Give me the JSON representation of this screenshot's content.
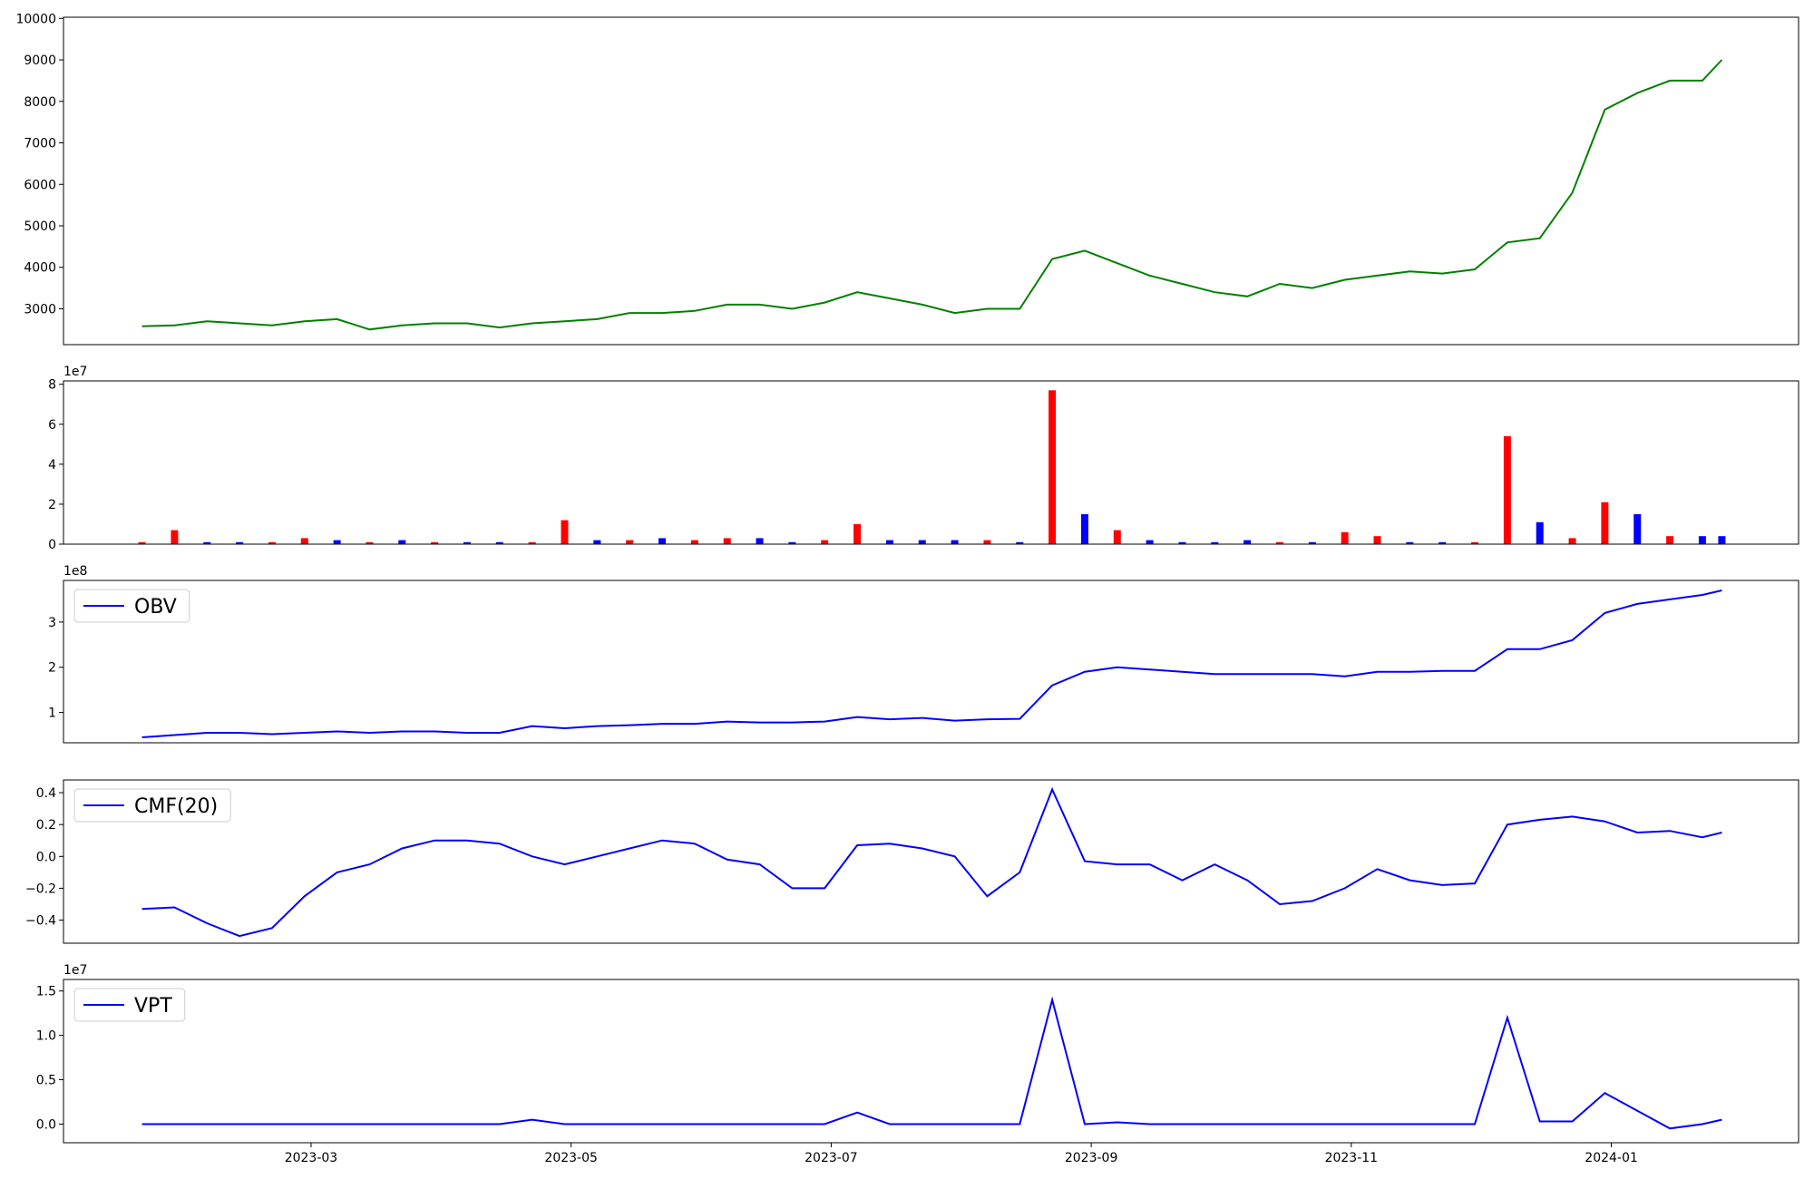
{
  "chart_data": [
    {
      "type": "line",
      "color": "#008000",
      "x": [
        0.7,
        0.95,
        1.2,
        1.45,
        1.7,
        1.95,
        2.2,
        2.45,
        2.7,
        2.95,
        3.2,
        3.45,
        3.7,
        3.95,
        4.2,
        4.45,
        4.7,
        4.95,
        5.2,
        5.45,
        5.7,
        5.95,
        6.2,
        6.45,
        6.7,
        6.95,
        7.2,
        7.45,
        7.7,
        7.95,
        8.2,
        8.45,
        8.7,
        8.95,
        9.2,
        9.45,
        9.7,
        9.95,
        10.2,
        10.45,
        10.7,
        10.95,
        11.2,
        11.45,
        11.7,
        11.95,
        12.2,
        12.45,
        12.7,
        12.85
      ],
      "values": [
        2580,
        2600,
        2700,
        2650,
        2600,
        2700,
        2750,
        2500,
        2600,
        2650,
        2650,
        2550,
        2650,
        2700,
        2750,
        2900,
        2900,
        2950,
        3100,
        3100,
        3000,
        3150,
        3400,
        3250,
        3100,
        2900,
        3000,
        3000,
        4200,
        4400,
        4100,
        3800,
        3600,
        3400,
        3300,
        3600,
        3500,
        3700,
        3800,
        3900,
        3850,
        3950,
        4600,
        4700,
        5800,
        7800,
        8200,
        8500,
        8500,
        9000
      ],
      "xlim": [
        0.096,
        13.44
      ],
      "ylim": [
        2136,
        10028
      ],
      "yticks": [
        3000,
        4000,
        5000,
        6000,
        7000,
        8000,
        9000,
        10000
      ]
    },
    {
      "type": "bar",
      "offset_label": "1e7",
      "x": [
        0.7,
        0.95,
        1.2,
        1.45,
        1.7,
        1.95,
        2.2,
        2.45,
        2.7,
        2.95,
        3.2,
        3.45,
        3.7,
        3.95,
        4.2,
        4.45,
        4.7,
        4.95,
        5.2,
        5.45,
        5.7,
        5.95,
        6.2,
        6.45,
        6.7,
        6.95,
        7.2,
        7.45,
        7.7,
        7.95,
        8.2,
        8.45,
        8.7,
        8.95,
        9.2,
        9.45,
        9.7,
        9.95,
        10.2,
        10.45,
        10.7,
        10.95,
        11.2,
        11.45,
        11.7,
        11.95,
        12.2,
        12.45,
        12.7,
        12.85
      ],
      "values": [
        0.1,
        0.7,
        0.1,
        0.1,
        0.1,
        0.3,
        0.2,
        0.1,
        0.2,
        0.1,
        0.1,
        0.1,
        0.1,
        1.2,
        0.2,
        0.2,
        0.3,
        0.2,
        0.3,
        0.3,
        0.1,
        0.2,
        1.0,
        0.2,
        0.2,
        0.2,
        0.2,
        0.1,
        7.7,
        1.5,
        0.7,
        0.2,
        0.1,
        0.1,
        0.2,
        0.1,
        0.1,
        0.6,
        0.4,
        0.1,
        0.1,
        0.1,
        5.4,
        1.1,
        0.3,
        2.1,
        1.5,
        0.4,
        0.4,
        0.4
      ],
      "bar_colors": [
        "#ff0000",
        "#ff0000",
        "#0000ff",
        "#0000ff",
        "#ff0000",
        "#ff0000",
        "#0000ff",
        "#ff0000",
        "#0000ff",
        "#ff0000",
        "#0000ff",
        "#0000ff",
        "#ff0000",
        "#ff0000",
        "#0000ff",
        "#ff0000",
        "#0000ff",
        "#ff0000",
        "#ff0000",
        "#0000ff",
        "#0000ff",
        "#ff0000",
        "#ff0000",
        "#0000ff",
        "#0000ff",
        "#0000ff",
        "#ff0000",
        "#0000ff",
        "#ff0000",
        "#0000ff",
        "#ff0000",
        "#0000ff",
        "#0000ff",
        "#0000ff",
        "#0000ff",
        "#ff0000",
        "#0000ff",
        "#ff0000",
        "#ff0000",
        "#0000ff",
        "#0000ff",
        "#ff0000",
        "#ff0000",
        "#0000ff",
        "#ff0000",
        "#ff0000",
        "#0000ff",
        "#ff0000",
        "#0000ff",
        "#0000ff"
      ],
      "xlim": [
        0.096,
        13.44
      ],
      "ylim": [
        0,
        8.17
      ],
      "yticks": [
        0,
        2,
        4,
        6,
        8
      ]
    },
    {
      "type": "line",
      "color": "#0000ff",
      "offset_label": "1e8",
      "name": "OBV",
      "legend": "upper left",
      "x": [
        0.7,
        0.95,
        1.2,
        1.45,
        1.7,
        1.95,
        2.2,
        2.45,
        2.7,
        2.95,
        3.2,
        3.45,
        3.7,
        3.95,
        4.2,
        4.45,
        4.7,
        4.95,
        5.2,
        5.45,
        5.7,
        5.95,
        6.2,
        6.45,
        6.7,
        6.95,
        7.2,
        7.45,
        7.7,
        7.95,
        8.2,
        8.45,
        8.7,
        8.95,
        9.2,
        9.45,
        9.7,
        9.95,
        10.2,
        10.45,
        10.7,
        10.95,
        11.2,
        11.45,
        11.7,
        11.95,
        12.2,
        12.45,
        12.7,
        12.85
      ],
      "values": [
        0.45,
        0.5,
        0.55,
        0.55,
        0.52,
        0.55,
        0.58,
        0.55,
        0.58,
        0.58,
        0.55,
        0.55,
        0.7,
        0.65,
        0.7,
        0.72,
        0.75,
        0.75,
        0.8,
        0.78,
        0.78,
        0.8,
        0.9,
        0.85,
        0.88,
        0.82,
        0.85,
        0.86,
        1.6,
        1.9,
        2.0,
        1.95,
        1.9,
        1.85,
        1.85,
        1.85,
        1.85,
        1.8,
        1.9,
        1.9,
        1.92,
        1.92,
        2.4,
        2.4,
        2.6,
        3.2,
        3.4,
        3.5,
        3.6,
        3.7
      ],
      "xlim": [
        0.096,
        13.44
      ],
      "ylim": [
        0.33,
        3.92
      ],
      "yticks": [
        1,
        2,
        3
      ]
    },
    {
      "type": "line",
      "color": "#0000ff",
      "name": "CMF(20)",
      "legend": "upper left",
      "x": [
        0.7,
        0.95,
        1.2,
        1.45,
        1.7,
        1.95,
        2.2,
        2.45,
        2.7,
        2.95,
        3.2,
        3.45,
        3.7,
        3.95,
        4.2,
        4.45,
        4.7,
        4.95,
        5.2,
        5.45,
        5.7,
        5.95,
        6.2,
        6.45,
        6.7,
        6.95,
        7.2,
        7.45,
        7.7,
        7.95,
        8.2,
        8.45,
        8.7,
        8.95,
        9.2,
        9.45,
        9.7,
        9.95,
        10.2,
        10.45,
        10.7,
        10.95,
        11.2,
        11.45,
        11.7,
        11.95,
        12.2,
        12.45,
        12.7,
        12.85
      ],
      "values": [
        -0.33,
        -0.32,
        -0.42,
        -0.5,
        -0.45,
        -0.25,
        -0.1,
        -0.05,
        0.05,
        0.1,
        0.1,
        0.08,
        0.0,
        -0.05,
        0.0,
        0.05,
        0.1,
        0.08,
        -0.02,
        -0.05,
        -0.2,
        -0.2,
        0.07,
        0.08,
        0.05,
        0.0,
        -0.25,
        -0.1,
        0.42,
        -0.03,
        -0.05,
        -0.05,
        -0.15,
        -0.05,
        -0.15,
        -0.3,
        -0.28,
        -0.2,
        -0.08,
        -0.15,
        -0.18,
        -0.17,
        0.2,
        0.23,
        0.25,
        0.22,
        0.15,
        0.16,
        0.12,
        0.15
      ],
      "xlim": [
        0.096,
        13.44
      ],
      "ylim": [
        -0.545,
        0.48
      ],
      "yticks": [
        {
          "value": -0.4,
          "label": "−0.4"
        },
        {
          "value": -0.2,
          "label": "−0.2"
        },
        {
          "value": 0,
          "label": "0.0"
        },
        {
          "value": 0.2,
          "label": "0.2"
        },
        {
          "value": 0.4,
          "label": "0.4"
        }
      ]
    },
    {
      "type": "line",
      "color": "#0000ff",
      "offset_label": "1e7",
      "name": "VPT",
      "legend": "upper left",
      "x": [
        0.7,
        0.95,
        1.2,
        1.45,
        1.7,
        1.95,
        2.2,
        2.45,
        2.7,
        2.95,
        3.2,
        3.45,
        3.7,
        3.95,
        4.2,
        4.45,
        4.7,
        4.95,
        5.2,
        5.45,
        5.7,
        5.95,
        6.2,
        6.45,
        6.7,
        6.95,
        7.2,
        7.45,
        7.7,
        7.95,
        8.2,
        8.45,
        8.7,
        8.95,
        9.2,
        9.45,
        9.7,
        9.95,
        10.2,
        10.45,
        10.7,
        10.95,
        11.2,
        11.45,
        11.7,
        11.95,
        12.2,
        12.45,
        12.7,
        12.85
      ],
      "values": [
        0,
        0,
        0,
        0,
        0,
        0,
        0,
        0,
        0,
        0,
        0,
        0,
        0.05,
        0,
        0,
        0,
        0,
        0,
        0,
        0,
        0,
        0,
        0.13,
        0,
        0,
        0,
        0,
        0,
        1.4,
        0,
        0.02,
        0,
        0,
        0,
        0,
        0,
        0,
        0,
        0,
        0,
        0,
        0,
        1.2,
        0.03,
        0.03,
        0.35,
        0.15,
        -0.05,
        0,
        0.05
      ],
      "xlim": [
        0.096,
        13.44
      ],
      "ylim": [
        -0.21,
        1.63
      ],
      "yticks": [
        {
          "value": 0,
          "label": "0.0"
        },
        {
          "value": 0.5,
          "label": "0.5"
        },
        {
          "value": 1,
          "label": "1.0"
        },
        {
          "value": 1.5,
          "label": "1.5"
        }
      ],
      "xticks": [
        {
          "value": 2,
          "label": "2023-03"
        },
        {
          "value": 4,
          "label": "2023-05"
        },
        {
          "value": 6,
          "label": "2023-07"
        },
        {
          "value": 8,
          "label": "2023-09"
        },
        {
          "value": 10,
          "label": "2023-11"
        },
        {
          "value": 12,
          "label": "2024-01"
        }
      ]
    }
  ]
}
